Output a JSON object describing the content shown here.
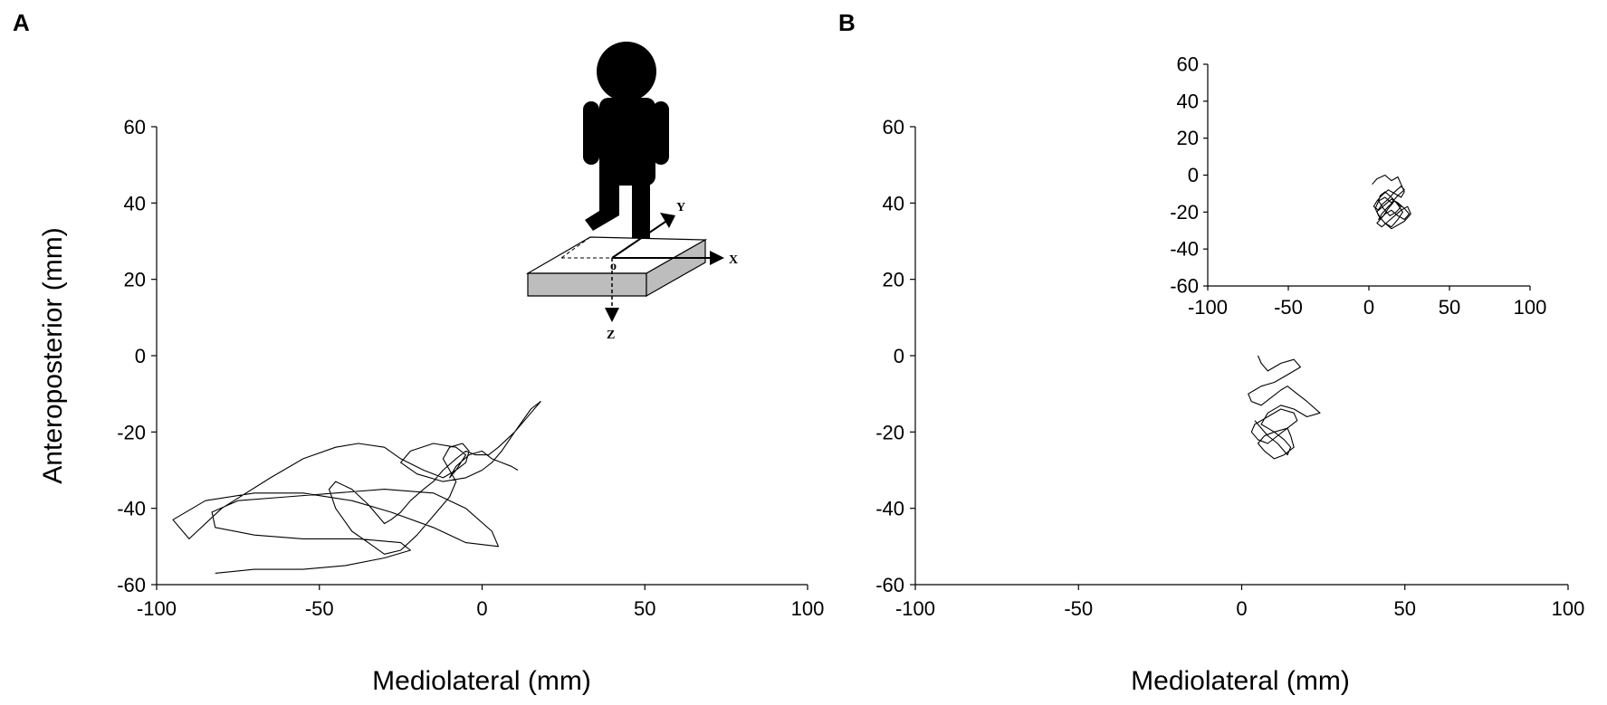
{
  "panels": [
    {
      "letter": "A"
    },
    {
      "letter": "B"
    }
  ],
  "inset_schematic": {
    "axis_labels": {
      "x": "X",
      "y": "Y",
      "z": "Z",
      "origin": "o"
    }
  },
  "colors": {
    "trace": "#000000",
    "figure": "#000000",
    "plate_top": "#ffffff",
    "plate_side": "#bdbdbd"
  },
  "chart_data": [
    {
      "panel": "A",
      "type": "line",
      "title": "",
      "xlabel": "Mediolateral (mm)",
      "ylabel": "Anteroposterior (mm)",
      "xlim": [
        -100,
        100
      ],
      "ylim": [
        -60,
        60
      ],
      "xticks": [
        -100,
        -50,
        0,
        50,
        100
      ],
      "yticks": [
        -60,
        -40,
        -20,
        0,
        20,
        40,
        60
      ],
      "grid": false,
      "series": [
        {
          "x": [
            -82,
            -70,
            -55,
            -42,
            -30,
            -22,
            -25,
            -38,
            -55,
            -70,
            -82,
            -83,
            -75,
            -60,
            -45,
            -30,
            -15,
            -5,
            3,
            5,
            -5,
            -15,
            -28,
            -40,
            -55,
            -70,
            -85,
            -95,
            -90,
            -80,
            -65,
            -55,
            -45,
            -38,
            -30,
            -25,
            -18,
            -12,
            -8,
            -5,
            -8,
            -15,
            -22,
            -25,
            -20,
            -12,
            -5,
            0,
            3,
            6,
            10,
            15,
            18,
            15,
            10,
            5,
            2,
            -2,
            -5,
            -8,
            -12,
            -15,
            -18,
            -22,
            -25,
            -28,
            -30,
            -32,
            -35,
            -40,
            -45,
            -47,
            -45,
            -40,
            -35,
            -30,
            -25,
            -20,
            -15,
            -10,
            -8,
            -10,
            -12,
            -10,
            -6,
            -4,
            -5,
            -8,
            -10,
            -8,
            -4,
            0,
            3,
            6,
            9,
            11
          ],
          "y": [
            -57,
            -56,
            -56,
            -55,
            -53,
            -51,
            -49,
            -48,
            -48,
            -47,
            -45,
            -41,
            -38,
            -37,
            -36,
            -35,
            -36,
            -40,
            -46,
            -50,
            -49,
            -45,
            -41,
            -38,
            -36,
            -36,
            -38,
            -43,
            -48,
            -40,
            -32,
            -27,
            -24,
            -23,
            -24,
            -27,
            -30,
            -32,
            -30,
            -26,
            -24,
            -23,
            -25,
            -28,
            -31,
            -33,
            -32,
            -30,
            -28,
            -25,
            -20,
            -14,
            -12,
            -15,
            -20,
            -24,
            -26,
            -26,
            -25,
            -27,
            -30,
            -33,
            -35,
            -38,
            -41,
            -43,
            -44,
            -42,
            -39,
            -35,
            -33,
            -35,
            -40,
            -46,
            -49,
            -52,
            -51,
            -47,
            -42,
            -37,
            -33,
            -30,
            -27,
            -24,
            -23,
            -25,
            -28,
            -30,
            -32,
            -29,
            -26,
            -25,
            -27,
            -28,
            -29,
            -30
          ]
        }
      ]
    },
    {
      "panel": "B",
      "type": "line",
      "title": "",
      "xlabel": "Mediolateral (mm)",
      "ylabel": "",
      "xlim": [
        -100,
        100
      ],
      "ylim": [
        -60,
        60
      ],
      "xticks": [
        -100,
        -50,
        0,
        50,
        100
      ],
      "yticks": [
        -60,
        -40,
        -20,
        0,
        20,
        40,
        60
      ],
      "grid": false,
      "series": [
        {
          "x": [
            5,
            6,
            8,
            12,
            16,
            18,
            14,
            10,
            6,
            4,
            2,
            3,
            6,
            9,
            12,
            14,
            17,
            20,
            24,
            20,
            16,
            12,
            8,
            6,
            10,
            14,
            17,
            16,
            12,
            8,
            4,
            3,
            5,
            8,
            11,
            14,
            15,
            16,
            13,
            10,
            7,
            5,
            7,
            10,
            13,
            15,
            14,
            11,
            8,
            6,
            4
          ],
          "y": [
            0,
            -2,
            -4,
            -2,
            -1,
            -3,
            -5,
            -7,
            -8,
            -9,
            -10,
            -12,
            -13,
            -11,
            -9,
            -8,
            -10,
            -12,
            -15,
            -16,
            -14,
            -13,
            -15,
            -18,
            -20,
            -19,
            -17,
            -15,
            -14,
            -16,
            -18,
            -20,
            -22,
            -23,
            -21,
            -19,
            -21,
            -24,
            -26,
            -27,
            -25,
            -23,
            -21,
            -20,
            -22,
            -24,
            -26,
            -23,
            -21,
            -19,
            -17
          ]
        }
      ]
    },
    {
      "panel": "B-inset",
      "type": "line",
      "title": "",
      "xlabel": "",
      "ylabel": "",
      "xlim": [
        -100,
        100
      ],
      "ylim": [
        -60,
        60
      ],
      "xticks": [
        -100,
        -50,
        0,
        50,
        100
      ],
      "yticks": [
        -60,
        -40,
        -20,
        0,
        20,
        40,
        60
      ],
      "grid": false,
      "series": [
        {
          "x": [
            2,
            5,
            10,
            14,
            18,
            20,
            22,
            20,
            16,
            12,
            8,
            5,
            3,
            6,
            10,
            14,
            18,
            22,
            25,
            22,
            18,
            14,
            10,
            7,
            5,
            8,
            12,
            16,
            20,
            24,
            26,
            22,
            18,
            14,
            10,
            6,
            4,
            6,
            10,
            14,
            18,
            22,
            20,
            16,
            12,
            8,
            5,
            7,
            10,
            14,
            18,
            21,
            18,
            14,
            10,
            7,
            6,
            9,
            13,
            17,
            20,
            16,
            12,
            8,
            6,
            9,
            12,
            15
          ],
          "y": [
            -5,
            -2,
            0,
            -3,
            -1,
            -5,
            -9,
            -12,
            -10,
            -8,
            -11,
            -14,
            -17,
            -19,
            -16,
            -13,
            -15,
            -18,
            -21,
            -24,
            -22,
            -19,
            -21,
            -24,
            -26,
            -28,
            -25,
            -22,
            -19,
            -17,
            -21,
            -25,
            -27,
            -29,
            -26,
            -22,
            -18,
            -14,
            -12,
            -15,
            -11,
            -8,
            -6,
            -9,
            -13,
            -16,
            -20,
            -23,
            -26,
            -28,
            -24,
            -20,
            -16,
            -12,
            -9,
            -11,
            -14,
            -18,
            -22,
            -20,
            -17,
            -14,
            -17,
            -21,
            -24,
            -22,
            -18,
            -15
          ]
        }
      ]
    }
  ]
}
